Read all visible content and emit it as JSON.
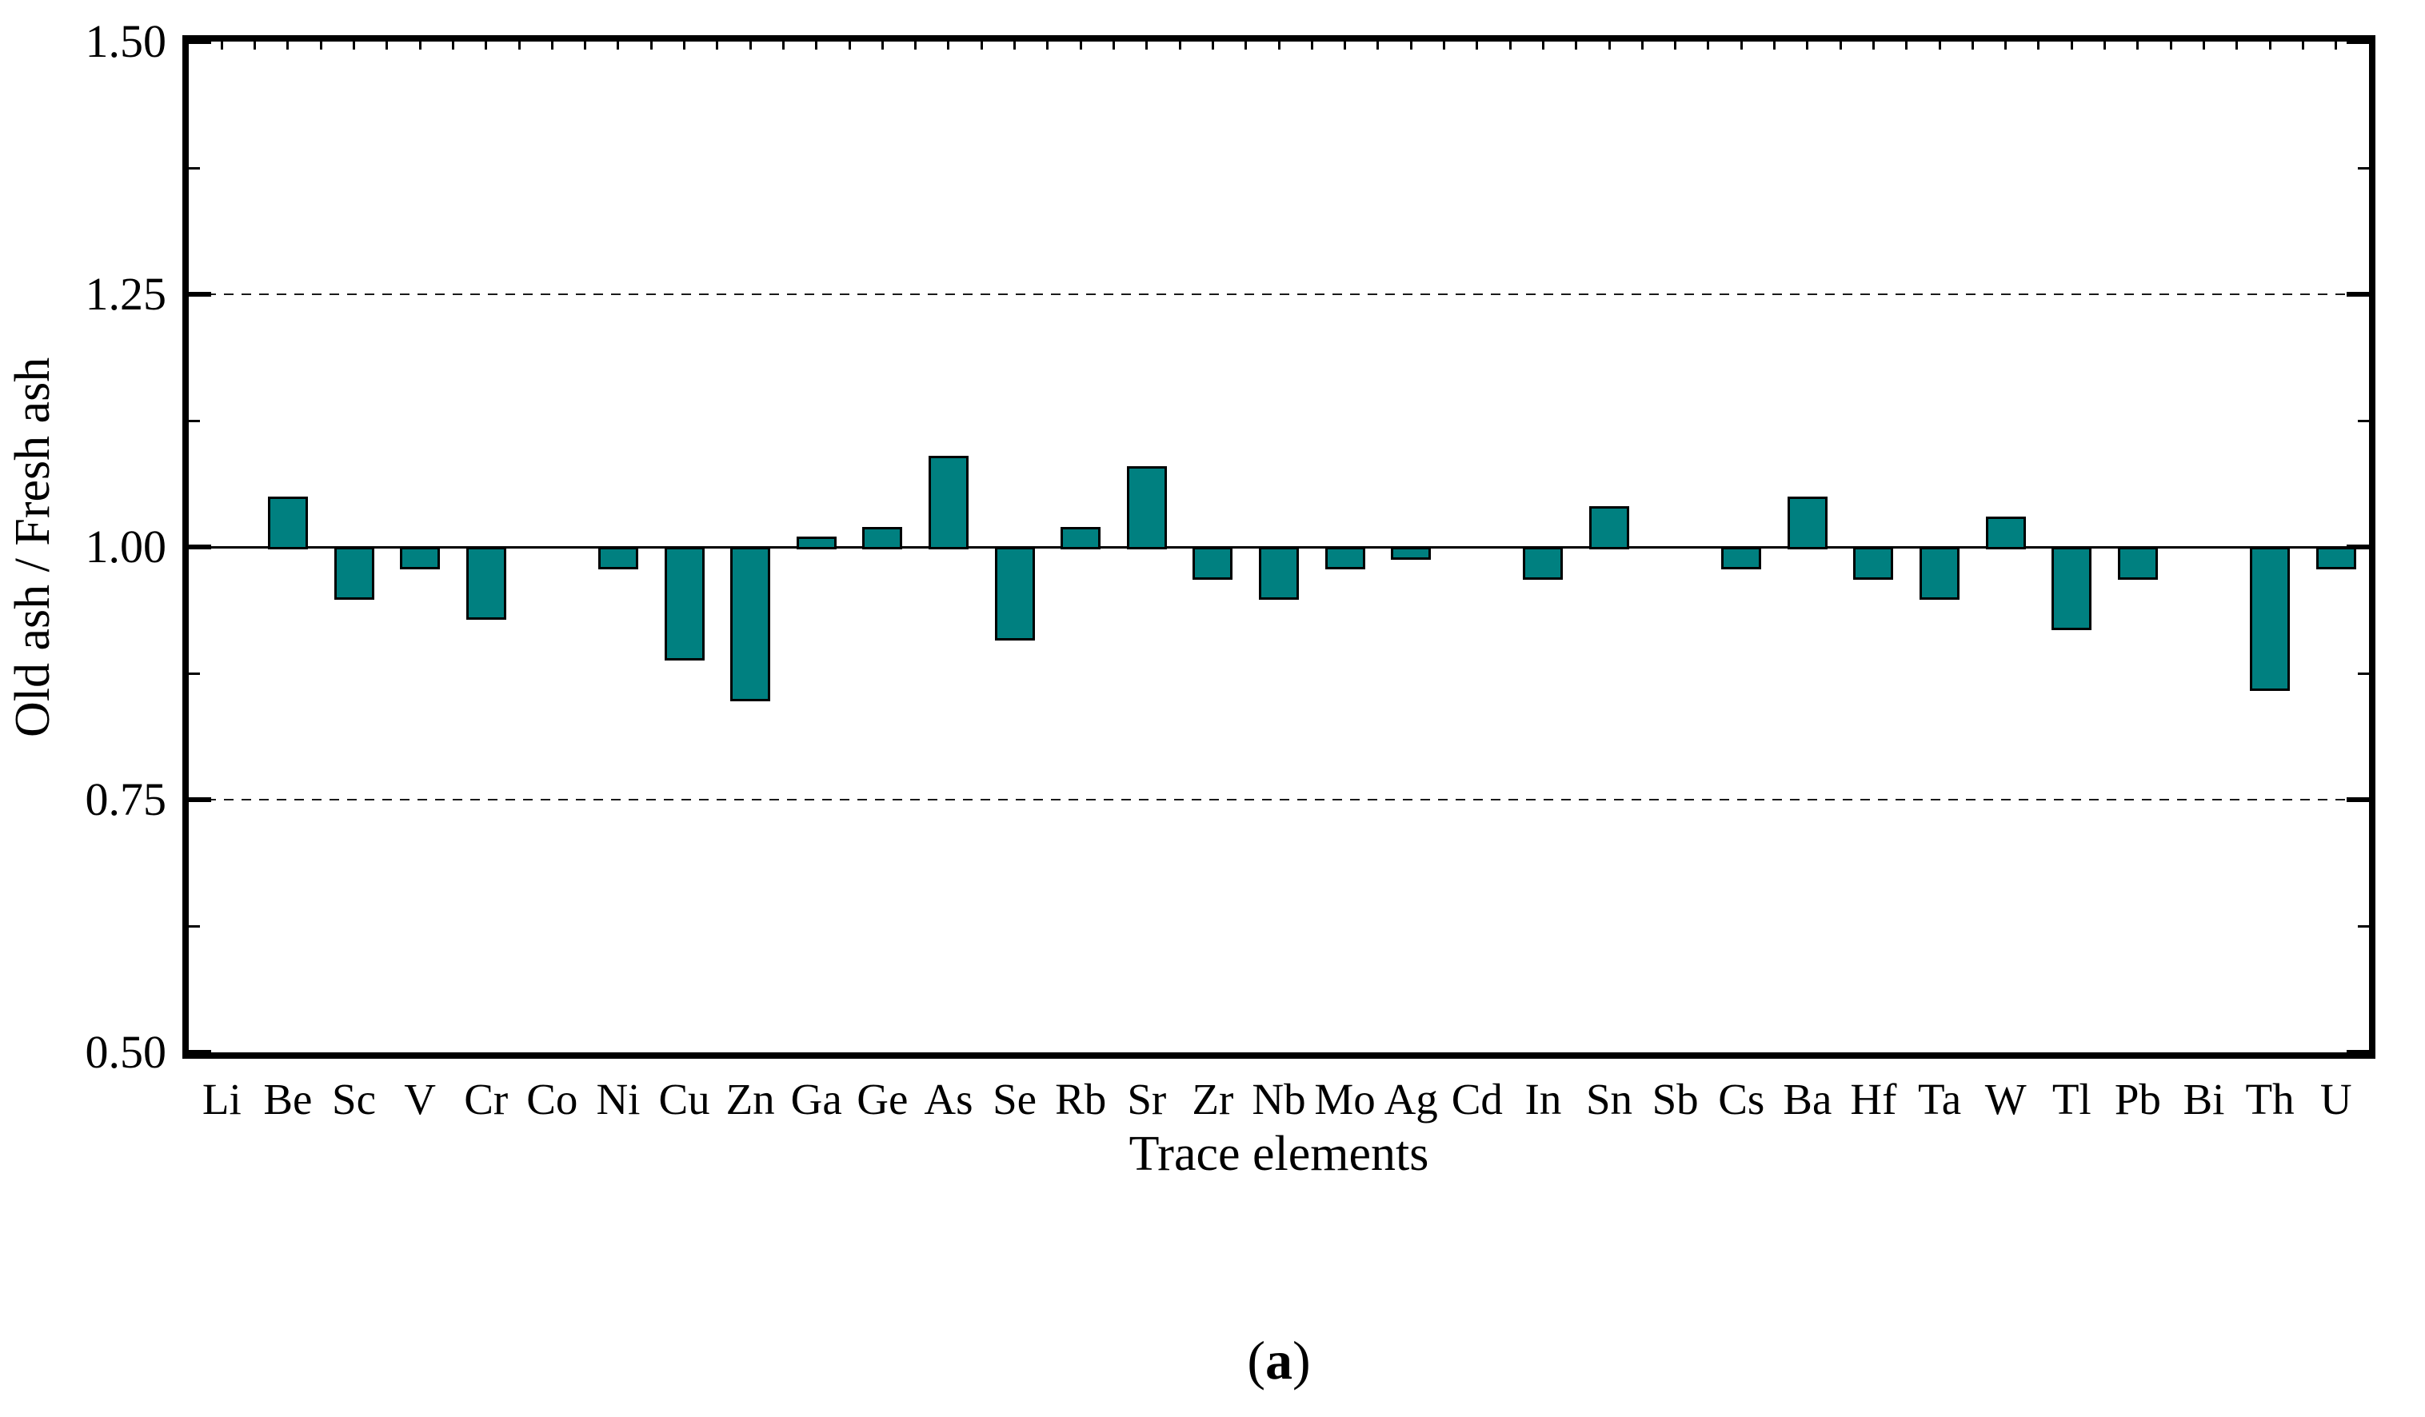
{
  "figure": {
    "ylabel": "Old ash / Fresh ash",
    "xlabel": "Trace elements",
    "caption": {
      "prefix": "(",
      "letter": "a",
      "suffix": ")"
    }
  },
  "chart_data": {
    "type": "bar",
    "title": "",
    "xlabel": "Trace elements",
    "ylabel": "Old ash / Fresh ash",
    "categories": [
      "Li",
      "Be",
      "Sc",
      "V",
      "Cr",
      "Co",
      "Ni",
      "Cu",
      "Zn",
      "Ga",
      "Ge",
      "As",
      "Se",
      "Rb",
      "Sr",
      "Zr",
      "Nb",
      "Mo",
      "Ag",
      "Cd",
      "In",
      "Sn",
      "Sb",
      "Cs",
      "Ba",
      "Hf",
      "Ta",
      "W",
      "Tl",
      "Pb",
      "Bi",
      "Th",
      "U"
    ],
    "values": [
      null,
      1.05,
      0.95,
      0.98,
      0.93,
      null,
      0.98,
      0.89,
      0.85,
      1.01,
      1.02,
      1.09,
      0.91,
      1.02,
      1.08,
      0.97,
      0.95,
      0.98,
      0.99,
      null,
      0.97,
      1.04,
      null,
      0.98,
      1.05,
      0.97,
      0.95,
      1.03,
      0.92,
      0.97,
      null,
      0.86,
      0.98
    ],
    "baseline": 1.0,
    "ylim": [
      0.5,
      1.5
    ],
    "ytick_values": [
      1.5,
      1.25,
      1.0,
      0.75,
      0.5
    ],
    "ytick_labels": [
      "1.50",
      "1.25",
      "1.00",
      "0.75",
      "0.50"
    ],
    "minor_ytick_values": [
      1.375,
      1.125,
      0.875,
      0.625
    ],
    "dashed_gridlines_at": [
      1.25,
      0.75
    ],
    "solid_line_at": 1.0,
    "legend_position": "none",
    "grid": "horizontal dashed at 0.75 and 1.25; solid baseline at 1.00",
    "bar_color": "#008080",
    "bar_border_color": "#000000",
    "axis_color": "#000000"
  }
}
